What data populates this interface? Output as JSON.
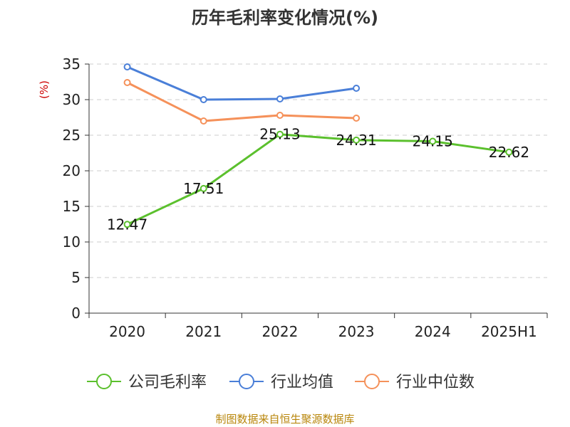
{
  "chart_data": {
    "type": "line",
    "title": "历年毛利率变化情况(%)",
    "ylabel": "(%)",
    "categories": [
      "2020",
      "2021",
      "2022",
      "2023",
      "2024",
      "2025H1"
    ],
    "yticks": [
      "0",
      "5",
      "10",
      "15",
      "20",
      "25",
      "30",
      "35"
    ],
    "ylim": [
      0,
      35
    ],
    "grid": true,
    "legend_position": "bottom",
    "series": [
      {
        "name": "公司毛利率",
        "color": "#5bc02d",
        "values": [
          12.47,
          17.51,
          25.13,
          24.31,
          24.15,
          22.62
        ],
        "labels": [
          "12.47",
          "17.51",
          "25.13",
          "24.31",
          "24.15",
          "22.62"
        ]
      },
      {
        "name": "行业均值",
        "color": "#4a7fd8",
        "values": [
          34.6,
          30.0,
          30.1,
          31.6,
          null,
          null
        ]
      },
      {
        "name": "行业中位数",
        "color": "#f5915a",
        "values": [
          32.4,
          27.0,
          27.8,
          27.4,
          null,
          null
        ]
      }
    ]
  },
  "source_text": "制图数据来自恒生聚源数据库"
}
